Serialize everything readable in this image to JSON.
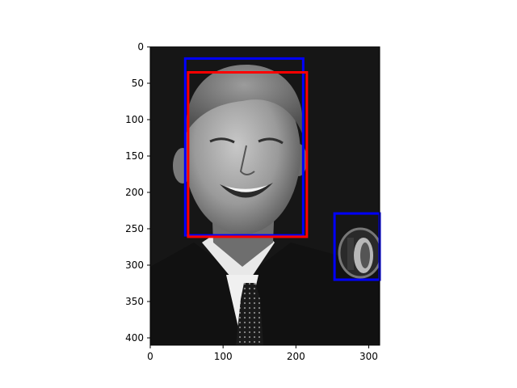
{
  "chart_data": {
    "type": "image",
    "title": "",
    "xlabel": "",
    "ylabel": "",
    "image_extent": {
      "width": 315,
      "height": 410
    },
    "xlim": [
      0,
      315
    ],
    "ylim": [
      410,
      0
    ],
    "x_ticks": [
      0,
      100,
      200,
      300
    ],
    "y_ticks": [
      0,
      50,
      100,
      150,
      200,
      250,
      300,
      350,
      400
    ],
    "x_tick_labels": [
      "0",
      "100",
      "200",
      "300"
    ],
    "y_tick_labels": [
      "0",
      "50",
      "100",
      "150",
      "200",
      "250",
      "300",
      "350",
      "400"
    ],
    "boxes": [
      {
        "name": "blue-box-face",
        "color": "#0000ff",
        "x0": 48,
        "y0": 16,
        "x1": 210,
        "y1": 259
      },
      {
        "name": "red-box-face",
        "color": "#ff0000",
        "x0": 52,
        "y0": 35,
        "x1": 215,
        "y1": 261
      },
      {
        "name": "blue-box-microphone",
        "color": "#0000ff",
        "x0": 253,
        "y0": 229,
        "x1": 315,
        "y1": 320
      }
    ],
    "grid": false,
    "legend": "none"
  },
  "colors": {
    "background": "#ffffff",
    "image_background": "#161616",
    "axis": "#000000"
  }
}
